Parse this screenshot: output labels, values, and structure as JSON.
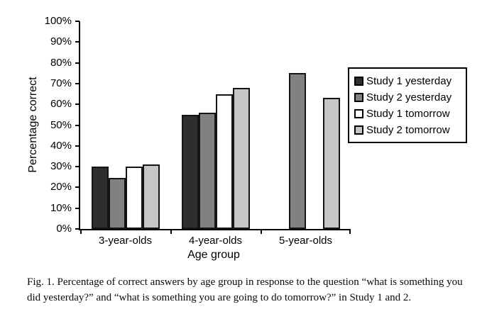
{
  "figure": {
    "caption": "Fig. 1. Percentage of correct answers by age group in response to the question “what is something you did yesterday?” and “what is something you are going to do tomorrow?” in Study 1 and 2."
  },
  "chart_data": {
    "type": "bar",
    "title": "",
    "xlabel": "Age group",
    "ylabel": "Percentage correct",
    "ylim": [
      0,
      100
    ],
    "ytick_step": 10,
    "ytick_labels": [
      "0%",
      "10%",
      "20%",
      "30%",
      "40%",
      "50%",
      "60%",
      "70%",
      "80%",
      "90%",
      "100%"
    ],
    "categories": [
      "3-year-olds",
      "4-year-olds",
      "5-year-olds"
    ],
    "series": [
      {
        "name": "Study 1 yesterday",
        "color": "#2e2e30",
        "values": [
          30,
          55,
          null
        ]
      },
      {
        "name": "Study 2 yesterday",
        "color": "#818181",
        "values": [
          24.5,
          56,
          75
        ]
      },
      {
        "name": "Study 1 tomorrow",
        "color": "#ffffff",
        "values": [
          30,
          65,
          null
        ]
      },
      {
        "name": "Study 2 tomorrow",
        "color": "#c6c6c6",
        "values": [
          31,
          68,
          63
        ]
      }
    ],
    "legend_position": "right",
    "grid": false,
    "bar_border_color": "#141414",
    "axis_color": "#000000"
  }
}
